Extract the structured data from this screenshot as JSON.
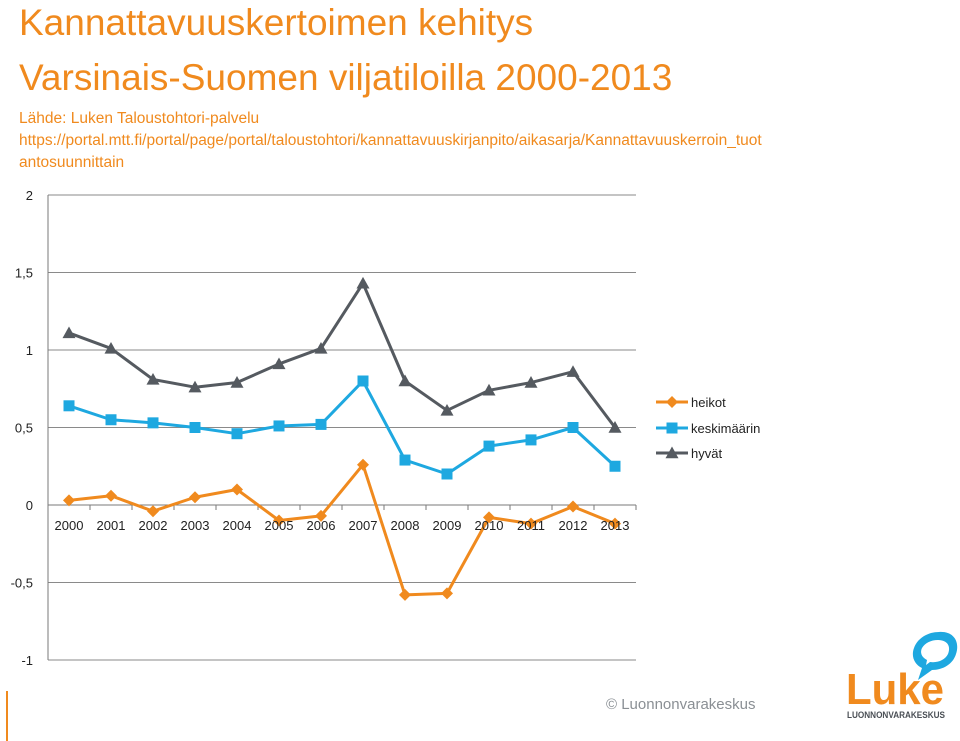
{
  "header": {
    "title_line1": "Kannattavuuskertoimen kehitys",
    "title_line2": "Varsinais-Suomen viljatiloilla 2000-2013",
    "source_line1": "Lähde: Luken Taloustohtori-palvelu",
    "source_line2": "https://portal.mtt.fi/portal/page/portal/taloustohtori/kannattavuuskirjanpito/aikasarja/Kannattavuuskerroin_tuot",
    "source_line3": "antosuunnittain"
  },
  "footer": {
    "copyright": "© Luonnonvarakeskus",
    "logo_word": "Luke",
    "logo_subtitle": "LUONNONVARAKESKUS"
  },
  "colors": {
    "accent": "#f08a1e",
    "heikot": "#f08a1e",
    "keskimaarin": "#1ea8e0",
    "hyvat": "#555a60",
    "logo_blue": "#1ea8e0",
    "logo_dark": "#4a4f55"
  },
  "chart_data": {
    "type": "line",
    "title": "Kannattavuuskertoimen kehitys Varsinais-Suomen viljatiloilla 2000-2013",
    "categories": [
      "2000",
      "2001",
      "2002",
      "2003",
      "2004",
      "2005",
      "2006",
      "2007",
      "2008",
      "2009",
      "2010",
      "2011",
      "2012",
      "2013"
    ],
    "ylim": [
      -1,
      2
    ],
    "yticks": [
      2,
      1.5,
      1,
      0.5,
      0,
      -0.5,
      -1
    ],
    "ytick_labels": [
      "2",
      "1,5",
      "1",
      "0,5",
      "0",
      "-0,5",
      "-1"
    ],
    "grid": true,
    "legend": "right",
    "series": [
      {
        "name": "heikot",
        "marker": "diamond",
        "values": [
          0.03,
          0.06,
          -0.04,
          0.05,
          0.1,
          -0.1,
          -0.07,
          0.26,
          -0.58,
          -0.57,
          -0.08,
          -0.12,
          -0.01,
          -0.12
        ]
      },
      {
        "name": "keskimäärin",
        "marker": "square",
        "values": [
          0.64,
          0.55,
          0.53,
          0.5,
          0.46,
          0.51,
          0.52,
          0.8,
          0.29,
          0.2,
          0.38,
          0.42,
          0.5,
          0.25
        ]
      },
      {
        "name": "hyvät",
        "marker": "triangle",
        "values": [
          1.11,
          1.01,
          0.81,
          0.76,
          0.79,
          0.91,
          1.01,
          1.43,
          0.8,
          0.61,
          0.74,
          0.79,
          0.86,
          0.5
        ]
      }
    ]
  }
}
